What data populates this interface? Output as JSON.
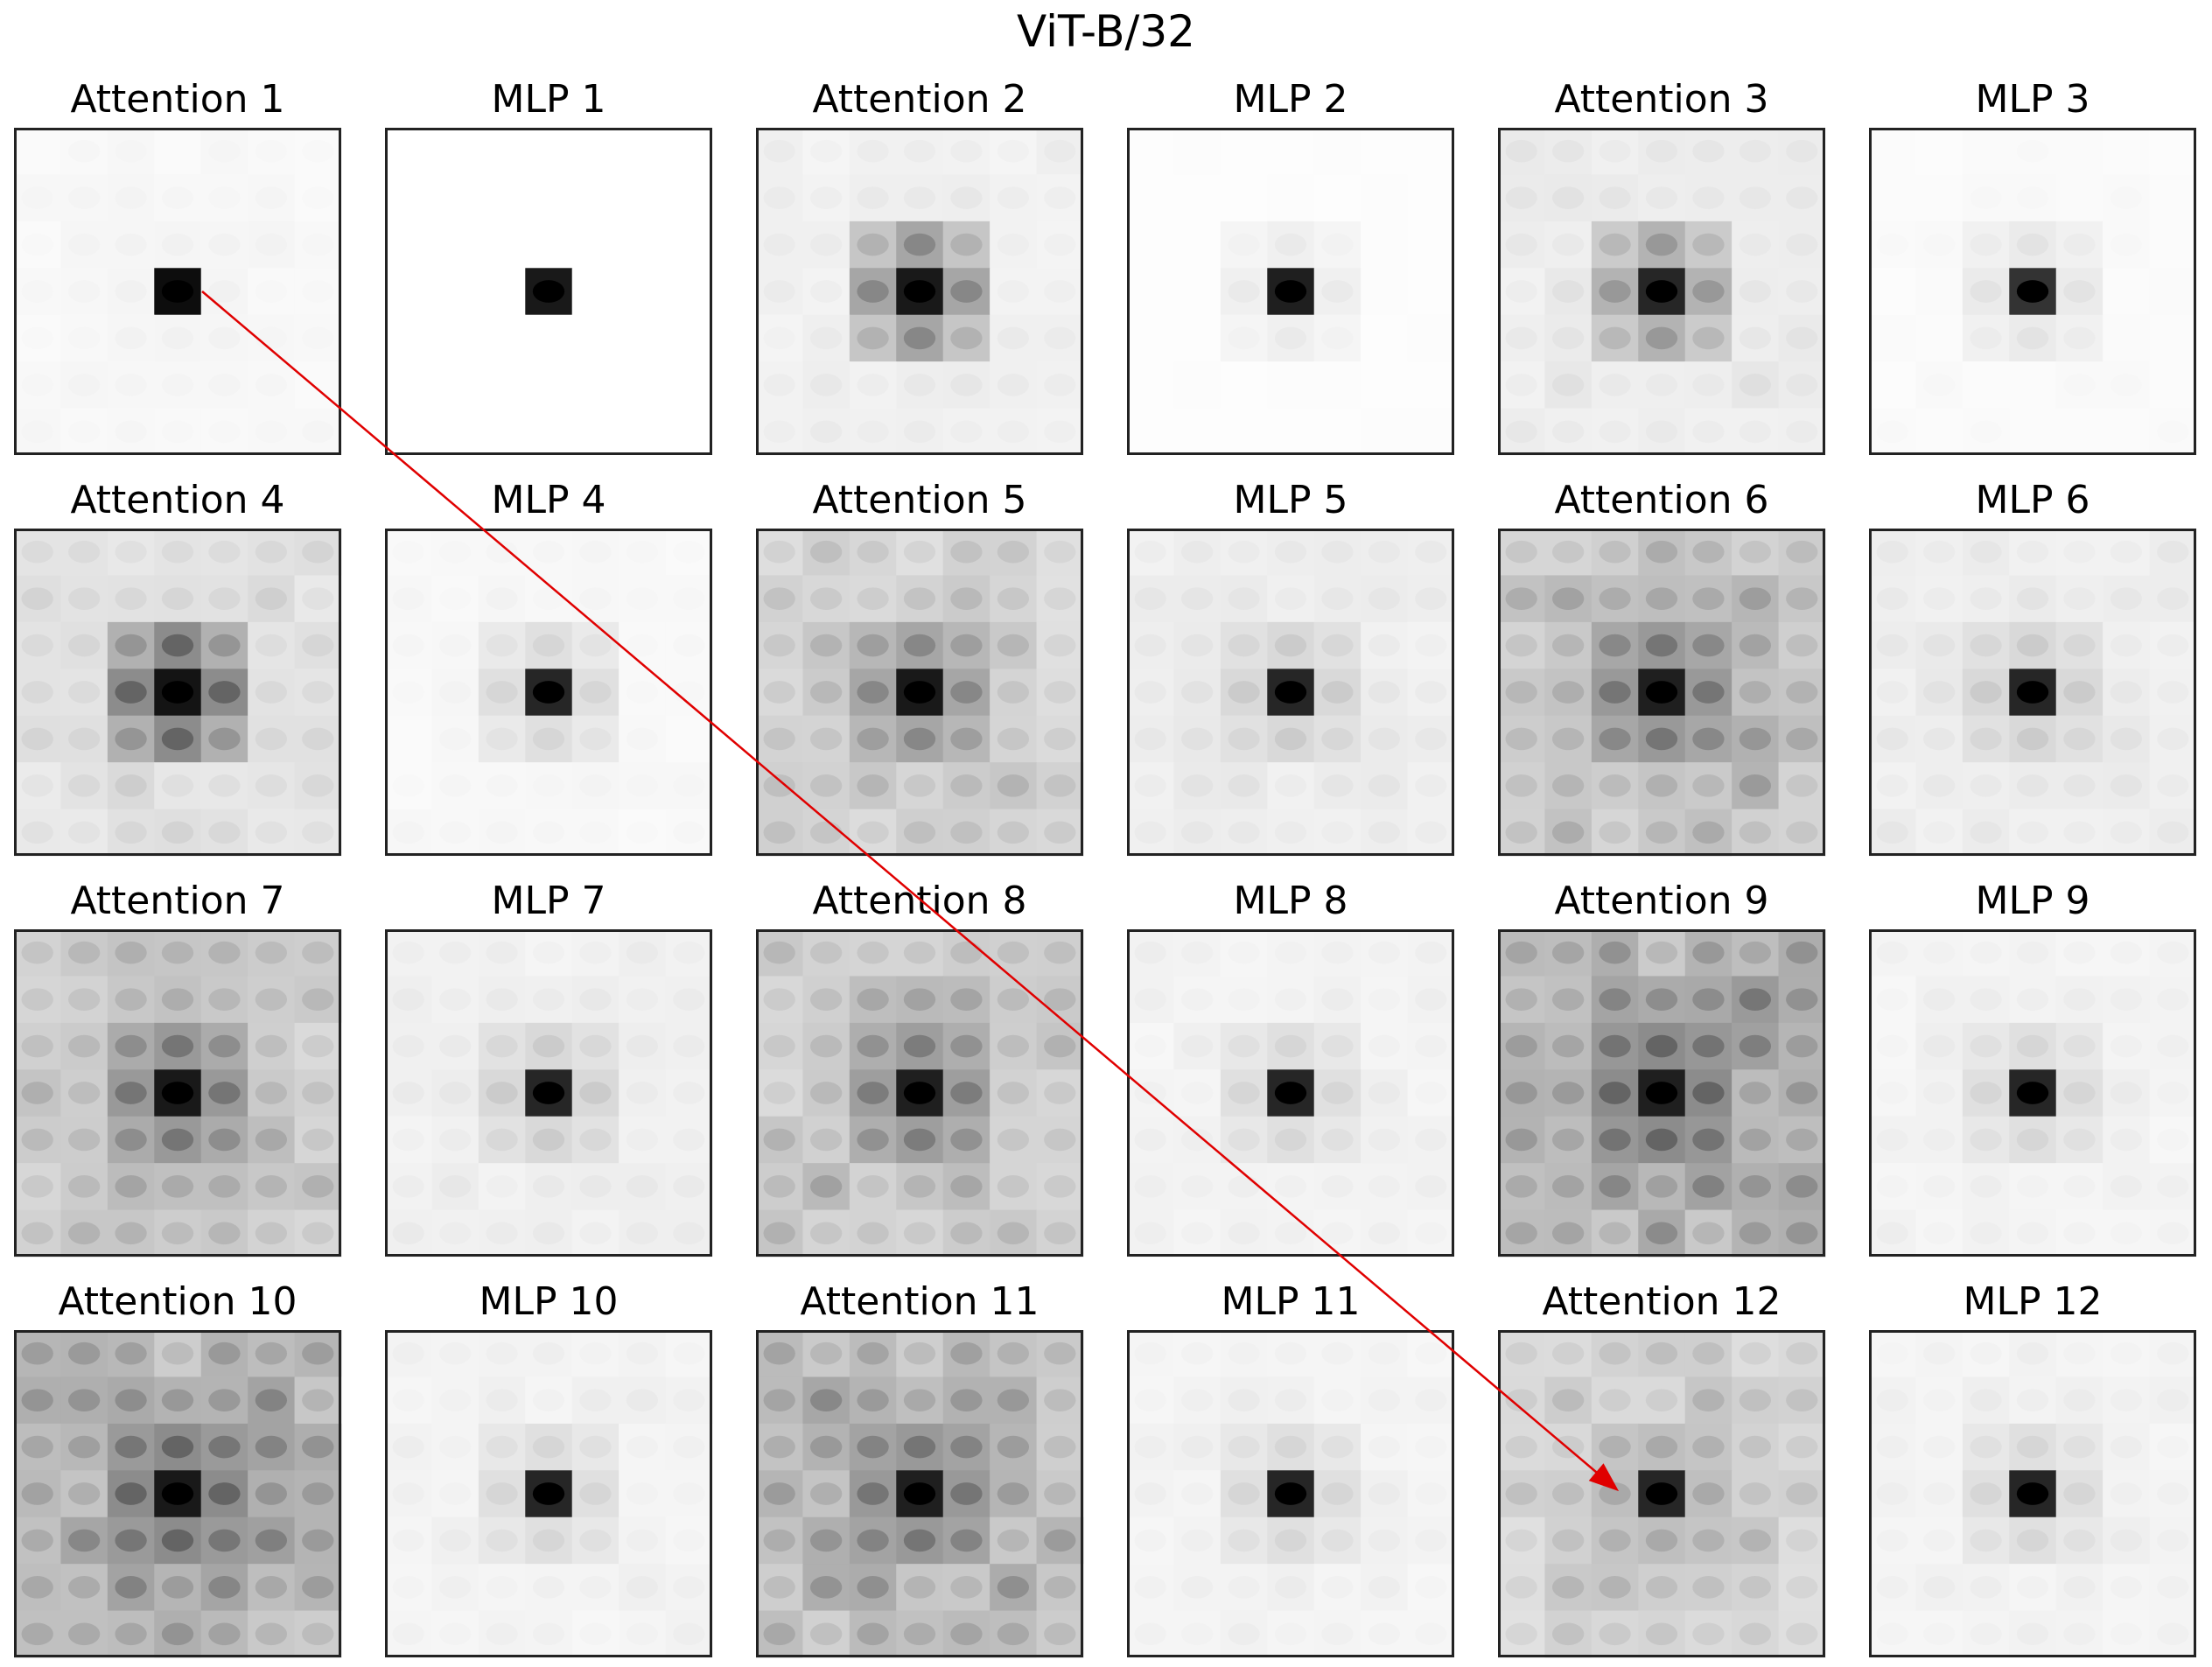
{
  "title": "ViT-B/32",
  "chart_data": {
    "type": "heatmap",
    "title": "ViT-B/32",
    "grid": "7x7 patch grid per panel",
    "colormap": "grayscale (white = low, black = high)",
    "panels": [
      {
        "title": "Attention 1",
        "center": 0.95,
        "neighbors": 0.04,
        "spread": 0.03
      },
      {
        "title": "MLP 1",
        "center": 0.9,
        "neighbors": 0.0,
        "spread": 0.0
      },
      {
        "title": "Attention 2",
        "center": 0.9,
        "neighbors": 0.35,
        "spread": 0.06
      },
      {
        "title": "MLP 2",
        "center": 0.88,
        "neighbors": 0.06,
        "spread": 0.01
      },
      {
        "title": "Attention 3",
        "center": 0.85,
        "neighbors": 0.3,
        "spread": 0.08
      },
      {
        "title": "MLP 3",
        "center": 0.8,
        "neighbors": 0.08,
        "spread": 0.02
      },
      {
        "title": "Attention 4",
        "center": 0.92,
        "neighbors": 0.45,
        "spread": 0.12
      },
      {
        "title": "MLP 4",
        "center": 0.85,
        "neighbors": 0.12,
        "spread": 0.03
      },
      {
        "title": "Attention 5",
        "center": 0.9,
        "neighbors": 0.35,
        "spread": 0.18
      },
      {
        "title": "MLP 5",
        "center": 0.85,
        "neighbors": 0.15,
        "spread": 0.07
      },
      {
        "title": "Attention 6",
        "center": 0.88,
        "neighbors": 0.4,
        "spread": 0.25
      },
      {
        "title": "MLP 6",
        "center": 0.85,
        "neighbors": 0.15,
        "spread": 0.07
      },
      {
        "title": "Attention 7",
        "center": 0.9,
        "neighbors": 0.4,
        "spread": 0.22
      },
      {
        "title": "MLP 7",
        "center": 0.85,
        "neighbors": 0.15,
        "spread": 0.06
      },
      {
        "title": "Attention 8",
        "center": 0.88,
        "neighbors": 0.38,
        "spread": 0.22
      },
      {
        "title": "MLP 8",
        "center": 0.85,
        "neighbors": 0.12,
        "spread": 0.05
      },
      {
        "title": "Attention 9",
        "center": 0.88,
        "neighbors": 0.45,
        "spread": 0.32
      },
      {
        "title": "MLP 9",
        "center": 0.85,
        "neighbors": 0.12,
        "spread": 0.05
      },
      {
        "title": "Attention 10",
        "center": 0.9,
        "neighbors": 0.45,
        "spread": 0.3
      },
      {
        "title": "MLP 10",
        "center": 0.85,
        "neighbors": 0.12,
        "spread": 0.05
      },
      {
        "title": "Attention 11",
        "center": 0.88,
        "neighbors": 0.4,
        "spread": 0.28
      },
      {
        "title": "MLP 11",
        "center": 0.85,
        "neighbors": 0.12,
        "spread": 0.05
      },
      {
        "title": "Attention 12",
        "center": 0.85,
        "neighbors": 0.25,
        "spread": 0.18
      },
      {
        "title": "MLP 12",
        "center": 0.85,
        "neighbors": 0.12,
        "spread": 0.05
      }
    ],
    "annotation": {
      "type": "arrow",
      "color": "#e00000",
      "from_panel": "Attention 1",
      "to_panel": "Attention 12"
    }
  }
}
